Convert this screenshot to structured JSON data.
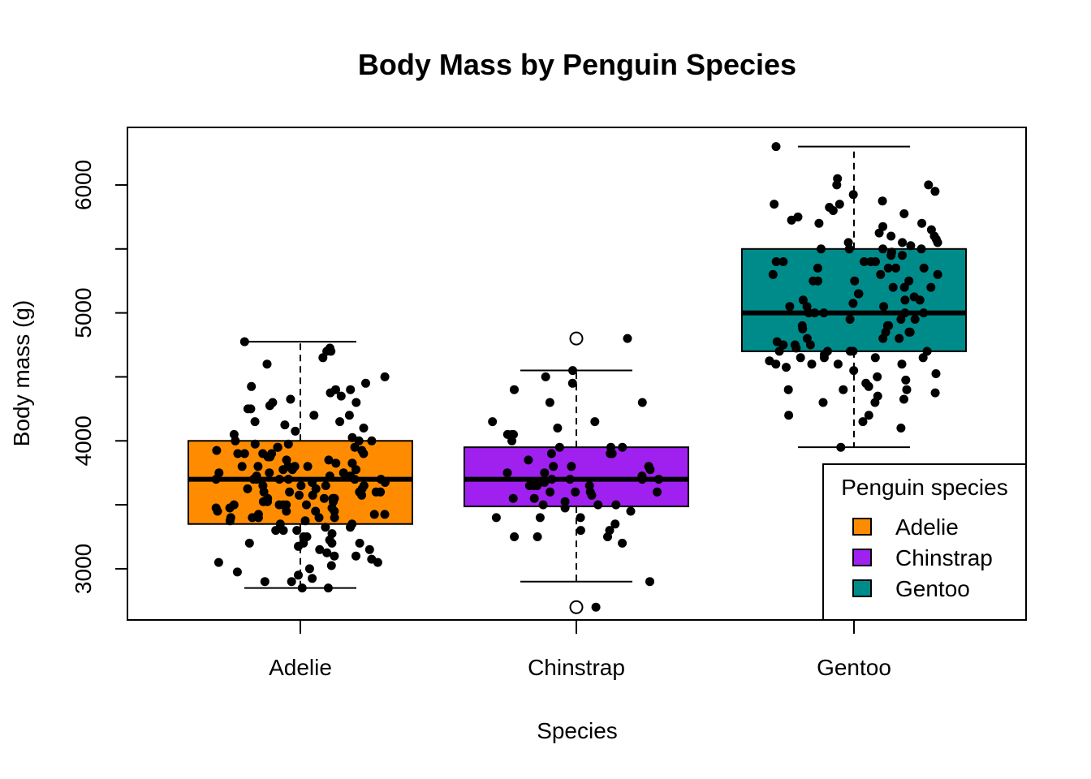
{
  "chart_data": {
    "type": "boxplot",
    "title": "Body Mass by Penguin Species",
    "xlabel": "Species",
    "ylabel": "Body mass (g)",
    "categories": [
      "Adelie",
      "Chinstrap",
      "Gentoo"
    ],
    "ylim": [
      2600,
      6450
    ],
    "y_ticks": [
      3000,
      4000,
      5000,
      6000
    ],
    "y_minor_ticks": [
      3000,
      3500,
      4000,
      4500,
      5000,
      5500,
      6000
    ],
    "colors": {
      "Adelie": "#FF8C00",
      "Chinstrap": "#A020F0",
      "Gentoo": "#008B8B"
    },
    "boxes": [
      {
        "name": "Adelie",
        "q1": 3350,
        "median": 3700,
        "q3": 4000,
        "whisker_low": 2850,
        "whisker_high": 4775,
        "outliers": []
      },
      {
        "name": "Chinstrap",
        "q1": 3487.5,
        "median": 3700,
        "q3": 3950,
        "whisker_low": 2900,
        "whisker_high": 4550,
        "outliers": [
          4800,
          2700
        ]
      },
      {
        "name": "Gentoo",
        "q1": 4700,
        "median": 5000,
        "q3": 5500,
        "whisker_low": 3950,
        "whisker_high": 6300,
        "outliers": []
      }
    ],
    "points": [
      {
        "species": "Adelie",
        "values": [
          4700,
          4600,
          4650,
          4500,
          4700,
          4725,
          4775,
          4450,
          4400,
          4300,
          4350,
          4300,
          4400,
          4250,
          4200,
          4150,
          4250,
          4200,
          4100,
          4000,
          4050,
          4075,
          4150,
          3950,
          3900,
          3950,
          4000,
          3900,
          3850,
          3800,
          3950,
          3900,
          3800,
          3750,
          3700,
          3650,
          3700,
          3800,
          3750,
          3700,
          3600,
          3650,
          3700,
          3550,
          3500,
          3600,
          3550,
          3500,
          3450,
          3400,
          3550,
          3500,
          3450,
          3400,
          3350,
          3300,
          3450,
          3600,
          3700,
          3750,
          3800,
          3900,
          3850,
          3700,
          3600,
          3650,
          3500,
          3400,
          3350,
          3300,
          3250,
          3200,
          3150,
          3100,
          3050,
          3000,
          2900,
          2850,
          2850,
          2900,
          2950,
          3050,
          3200,
          3250,
          3150,
          3400,
          3450,
          3550,
          3650,
          3775,
          3825,
          3475,
          3525,
          3325,
          3425,
          3575,
          3625,
          3675,
          3725,
          3625,
          3575,
          3525,
          3475,
          3425,
          3375,
          3725,
          3775,
          3825,
          3875,
          3925,
          3975,
          4025,
          4125,
          3975,
          3925,
          3875,
          3825,
          3775,
          3725,
          3675,
          3625,
          3575,
          3525,
          3475,
          3425,
          3375,
          3325,
          3275,
          3225,
          3175,
          3125,
          3075,
          3025,
          2975,
          2925,
          4425,
          4375,
          4325,
          4275,
          3200,
          3300,
          3500,
          3700,
          3900,
          4000,
          3800,
          3600,
          3400,
          3200,
          3100
        ]
      },
      {
        "species": "Chinstrap",
        "values": [
          4800,
          4500,
          4450,
          4550,
          4400,
          4300,
          4300,
          4150,
          4150,
          4100,
          4050,
          4050,
          4000,
          4050,
          3950,
          3900,
          3950,
          3900,
          3850,
          3800,
          3800,
          3750,
          3750,
          3700,
          3700,
          3700,
          3650,
          3650,
          3600,
          3600,
          3550,
          3500,
          3500,
          3450,
          3400,
          3400,
          3350,
          3300,
          3300,
          3250,
          3250,
          3250,
          3200,
          3400,
          3550,
          3600,
          3700,
          3800,
          3900,
          3500,
          3650,
          3600,
          3525,
          3475,
          3575,
          3675,
          3775,
          2900,
          2700,
          3950,
          3725,
          3650
        ]
      },
      {
        "species": "Gentoo",
        "values": [
          6300,
          6050,
          6000,
          6000,
          5950,
          5850,
          5850,
          5800,
          5750,
          5700,
          5700,
          5650,
          5600,
          5550,
          5550,
          5550,
          5500,
          5500,
          5500,
          5450,
          5400,
          5400,
          5400,
          5400,
          5350,
          5350,
          5300,
          5300,
          5250,
          5250,
          5200,
          5200,
          5150,
          5100,
          5100,
          5050,
          5050,
          5000,
          5000,
          5000,
          5000,
          4950,
          4950,
          4900,
          4900,
          4875,
          4850,
          4850,
          4800,
          4800,
          4750,
          4750,
          4750,
          4700,
          4700,
          4700,
          4700,
          4650,
          4650,
          4650,
          4650,
          4600,
          4600,
          4600,
          4550,
          4500,
          4450,
          4400,
          4400,
          4400,
          4350,
          4300,
          4300,
          4200,
          4200,
          4150,
          4100,
          3950,
          5400,
          5300,
          5200,
          5100,
          5000,
          4900,
          4800,
          4700,
          4600,
          5500,
          5600,
          5050,
          4950,
          4850,
          5150,
          5250,
          5350,
          5450,
          5350,
          5250,
          4775,
          4725,
          5125,
          5075,
          4675,
          4625,
          4575,
          4525,
          4475,
          4425,
          4375,
          4325,
          5475,
          5525,
          5575,
          5625,
          5675,
          5725,
          5775,
          5825,
          5875,
          5925
        ]
      }
    ],
    "legend": {
      "title": "Penguin species",
      "position": "bottom-right",
      "items": [
        "Adelie",
        "Chinstrap",
        "Gentoo"
      ]
    }
  }
}
